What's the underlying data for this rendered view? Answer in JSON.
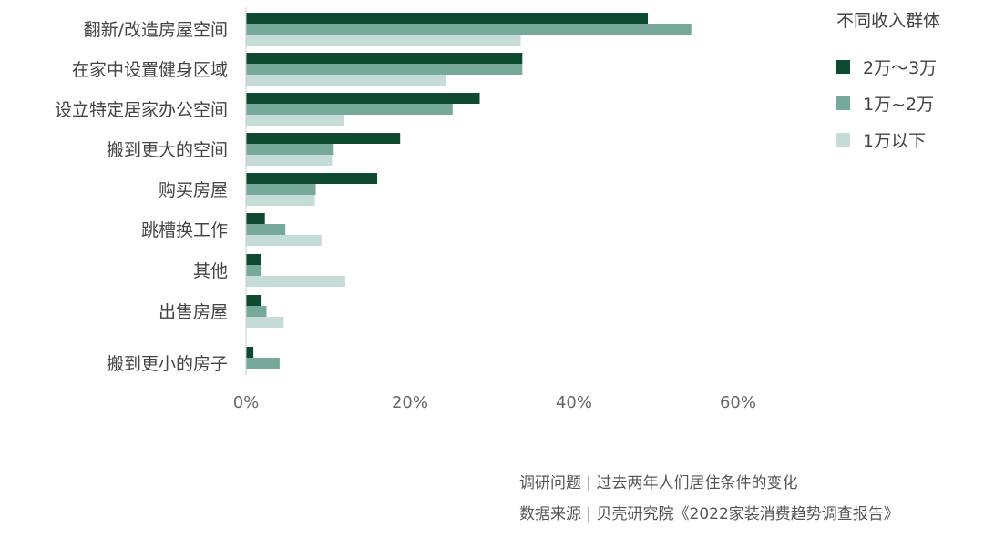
{
  "chart_data": {
    "type": "bar",
    "orientation": "horizontal",
    "categories": [
      "翻新/改造房屋空间",
      "在家中设置健身区域",
      "设立特定居家办公空间",
      "搬到更大的空间",
      "购买房屋",
      "跳槽换工作",
      "其他",
      "出售房屋",
      "搬到更小的房子"
    ],
    "series": [
      {
        "name": "2万～3万",
        "color": "#0d4a2f",
        "values": [
          49,
          33.7,
          28.5,
          18.8,
          16,
          2.3,
          1.8,
          1.9,
          0.9
        ]
      },
      {
        "name": "1万~2万",
        "color": "#76a99a",
        "values": [
          54.3,
          33.7,
          25.2,
          10.7,
          8.5,
          4.8,
          1.9,
          2.5,
          4.1
        ]
      },
      {
        "name": "1万以下",
        "color": "#c5dcd8",
        "values": [
          33.5,
          24.4,
          12,
          10.5,
          8.4,
          9.2,
          12.1,
          4.6,
          null
        ]
      }
    ],
    "xticks": [
      "0%",
      "20%",
      "40%",
      "60%"
    ],
    "xlim": [
      0,
      60
    ],
    "legend_title": "不同收入群体",
    "legend_position": "top-right"
  },
  "footer": {
    "question": "调研问题 | 过去两年人们居住条件的变化",
    "source": "数据来源 | 贝壳研究院《2022家装消费趋势调查报告》"
  }
}
